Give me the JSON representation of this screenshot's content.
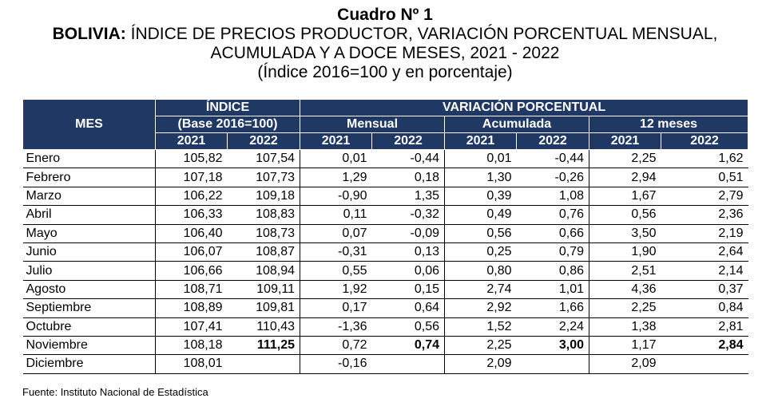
{
  "title": "Cuadro Nº 1",
  "subtitle_bold": "BOLIVIA:",
  "subtitle_rest": " ÍNDICE DE PRECIOS PRODUCTOR, VARIACIÓN PORCENTUAL MENSUAL,",
  "subtitle_line2": "ACUMULADA Y A DOCE MESES, 2021 - 2022",
  "subtitle_line3": "(Índice 2016=100 y en porcentaje)",
  "header": {
    "mes": "MES",
    "indice": "ÍNDICE",
    "indice_base": "(Base 2016=100)",
    "variacion": "VARIACIÓN PORCENTUAL",
    "mensual": "Mensual",
    "acumulada": "Acumulada",
    "doce": "12 meses",
    "y2021": "2021",
    "y2022": "2022"
  },
  "rows": [
    {
      "mes": "Enero",
      "i21": "105,82",
      "i22": "107,54",
      "m21": "0,01",
      "m22": "-0,44",
      "a21": "0,01",
      "a22": "-0,44",
      "d21": "2,25",
      "d22": "1,62"
    },
    {
      "mes": "Febrero",
      "i21": "107,18",
      "i22": "107,73",
      "m21": "1,29",
      "m22": "0,18",
      "a21": "1,30",
      "a22": "-0,26",
      "d21": "2,94",
      "d22": "0,51"
    },
    {
      "mes": "Marzo",
      "i21": "106,22",
      "i22": "109,18",
      "m21": "-0,90",
      "m22": "1,35",
      "a21": "0,39",
      "a22": "1,08",
      "d21": "1,67",
      "d22": "2,79"
    },
    {
      "mes": "Abril",
      "i21": "106,33",
      "i22": "108,83",
      "m21": "0,11",
      "m22": "-0,32",
      "a21": "0,49",
      "a22": "0,76",
      "d21": "0,56",
      "d22": "2,36"
    },
    {
      "mes": "Mayo",
      "i21": "106,40",
      "i22": "108,73",
      "m21": "0,07",
      "m22": "-0,09",
      "a21": "0,56",
      "a22": "0,66",
      "d21": "3,50",
      "d22": "2,19"
    },
    {
      "mes": "Junio",
      "i21": "106,07",
      "i22": "108,87",
      "m21": "-0,31",
      "m22": "0,13",
      "a21": "0,25",
      "a22": "0,79",
      "d21": "1,90",
      "d22": "2,64"
    },
    {
      "mes": "Julio",
      "i21": "106,66",
      "i22": "108,94",
      "m21": "0,55",
      "m22": "0,06",
      "a21": "0,80",
      "a22": "0,86",
      "d21": "2,51",
      "d22": "2,14"
    },
    {
      "mes": "Agosto",
      "i21": "108,71",
      "i22": "109,11",
      "m21": "1,92",
      "m22": "0,15",
      "a21": "2,74",
      "a22": "1,01",
      "d21": "4,36",
      "d22": "0,37"
    },
    {
      "mes": "Septiembre",
      "i21": "108,89",
      "i22": "109,81",
      "m21": "0,17",
      "m22": "0,64",
      "a21": "2,92",
      "a22": "1,66",
      "d21": "2,25",
      "d22": "0,84"
    },
    {
      "mes": "Octubre",
      "i21": "107,41",
      "i22": "110,43",
      "m21": "-1,36",
      "m22": "0,56",
      "a21": "1,52",
      "a22": "2,24",
      "d21": "1,38",
      "d22": "2,81"
    },
    {
      "mes": "Noviembre",
      "i21": "108,18",
      "i22": "111,25",
      "m21": "0,72",
      "m22": "0,74",
      "a21": "2,25",
      "a22": "3,00",
      "d21": "1,17",
      "d22": "2,84"
    },
    {
      "mes": "Diciembre",
      "i21": "108,01",
      "i22": "",
      "m21": "-0,16",
      "m22": "",
      "a21": "2,09",
      "a22": "",
      "d21": "2,09",
      "d22": ""
    }
  ],
  "source": "Fuente: Instituto Nacional de Estadística"
}
